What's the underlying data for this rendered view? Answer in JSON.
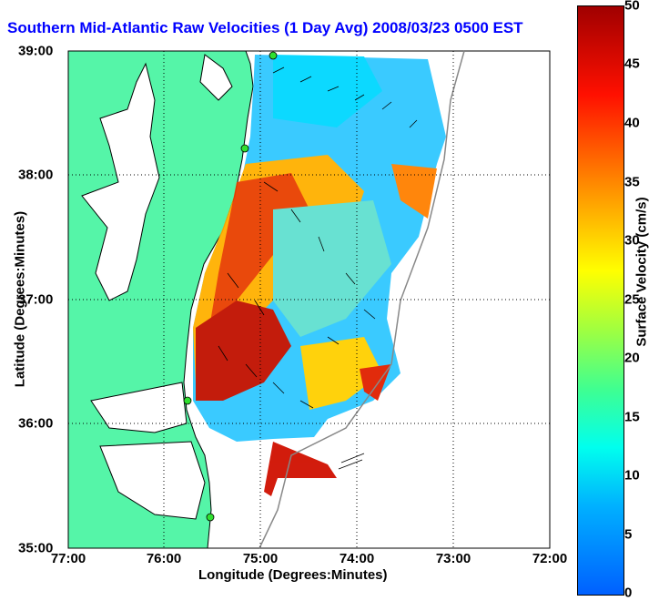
{
  "title": "Southern Mid-Atlantic Raw Velocities (1 Day Avg) 2008/03/23 0500 EST",
  "xlabel": "Longitude (Degrees:Minutes)",
  "ylabel": "Latitude (Degrees:Minutes)",
  "x_ticks": [
    "77:00",
    "76:00",
    "75:00",
    "74:00",
    "73:00",
    "72:00"
  ],
  "y_ticks": [
    "39:00",
    "38:00",
    "37:00",
    "36:00",
    "35:00"
  ],
  "colorbar": {
    "label": "Surface Velocity (cm/s)",
    "ticks": [
      "50",
      "45",
      "40",
      "35",
      "30",
      "25",
      "20",
      "15",
      "10",
      "5",
      "0"
    ]
  },
  "colors": {
    "land": "#55f5a8",
    "water": "#ffffff",
    "title": "#0000ff"
  }
}
